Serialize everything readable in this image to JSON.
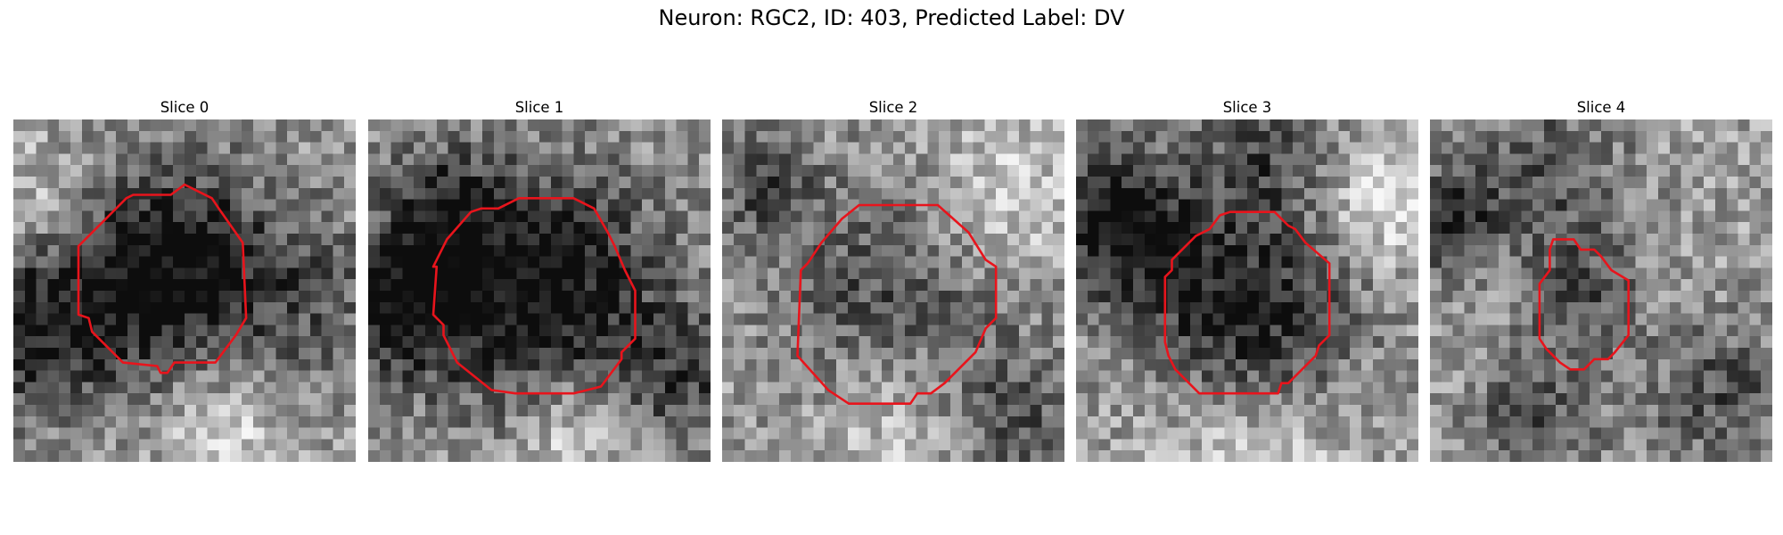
{
  "figure": {
    "title": "Neuron: RGC2, ID: 403, Predicted Label: DV"
  },
  "colors": {
    "contour": "#e8141c"
  },
  "panels": [
    {
      "title": "Slice 0",
      "seed": 11,
      "blobs": [
        [
          0.46,
          0.44,
          0.23,
          0.62
        ],
        [
          0.05,
          0.62,
          0.18,
          0.45
        ],
        [
          0.08,
          0.24,
          0.12,
          -0.2
        ],
        [
          0.62,
          0.9,
          0.14,
          -0.25
        ],
        [
          0.92,
          0.55,
          0.2,
          0.2
        ]
      ],
      "contour": [
        [
          0.5,
          0.19
        ],
        [
          0.58,
          0.23
        ],
        [
          0.6,
          0.26
        ],
        [
          0.67,
          0.36
        ],
        [
          0.68,
          0.58
        ],
        [
          0.65,
          0.63
        ],
        [
          0.59,
          0.71
        ],
        [
          0.56,
          0.71
        ],
        [
          0.47,
          0.71
        ],
        [
          0.45,
          0.74
        ],
        [
          0.43,
          0.74
        ],
        [
          0.42,
          0.72
        ],
        [
          0.32,
          0.71
        ],
        [
          0.27,
          0.66
        ],
        [
          0.23,
          0.62
        ],
        [
          0.22,
          0.58
        ],
        [
          0.19,
          0.57
        ],
        [
          0.19,
          0.37
        ],
        [
          0.27,
          0.29
        ],
        [
          0.33,
          0.23
        ],
        [
          0.35,
          0.22
        ],
        [
          0.46,
          0.22
        ]
      ]
    },
    {
      "title": "Slice 1",
      "seed": 23,
      "blobs": [
        [
          0.5,
          0.5,
          0.26,
          0.62
        ],
        [
          0.07,
          0.55,
          0.14,
          0.5
        ],
        [
          0.2,
          0.25,
          0.12,
          0.35
        ],
        [
          0.6,
          0.9,
          0.12,
          -0.3
        ],
        [
          0.93,
          0.75,
          0.14,
          0.3
        ]
      ],
      "contour": [
        [
          0.44,
          0.23
        ],
        [
          0.6,
          0.23
        ],
        [
          0.66,
          0.26
        ],
        [
          0.7,
          0.33
        ],
        [
          0.72,
          0.37
        ],
        [
          0.75,
          0.44
        ],
        [
          0.78,
          0.5
        ],
        [
          0.78,
          0.64
        ],
        [
          0.74,
          0.68
        ],
        [
          0.74,
          0.7
        ],
        [
          0.68,
          0.78
        ],
        [
          0.6,
          0.8
        ],
        [
          0.57,
          0.8
        ],
        [
          0.5,
          0.8
        ],
        [
          0.47,
          0.8
        ],
        [
          0.43,
          0.8
        ],
        [
          0.36,
          0.79
        ],
        [
          0.26,
          0.71
        ],
        [
          0.22,
          0.63
        ],
        [
          0.22,
          0.6
        ],
        [
          0.19,
          0.57
        ],
        [
          0.2,
          0.43
        ],
        [
          0.19,
          0.43
        ],
        [
          0.23,
          0.35
        ],
        [
          0.3,
          0.27
        ],
        [
          0.33,
          0.26
        ],
        [
          0.38,
          0.26
        ]
      ]
    },
    {
      "title": "Slice 2",
      "seed": 37,
      "blobs": [
        [
          0.5,
          0.55,
          0.25,
          0.35
        ],
        [
          0.12,
          0.2,
          0.12,
          0.3
        ],
        [
          0.8,
          0.25,
          0.15,
          -0.25
        ],
        [
          0.85,
          0.88,
          0.14,
          0.3
        ],
        [
          0.5,
          0.85,
          0.18,
          -0.25
        ]
      ],
      "contour": [
        [
          0.4,
          0.25
        ],
        [
          0.63,
          0.25
        ],
        [
          0.72,
          0.33
        ],
        [
          0.77,
          0.41
        ],
        [
          0.8,
          0.43
        ],
        [
          0.8,
          0.58
        ],
        [
          0.77,
          0.61
        ],
        [
          0.74,
          0.68
        ],
        [
          0.65,
          0.77
        ],
        [
          0.61,
          0.8
        ],
        [
          0.57,
          0.8
        ],
        [
          0.55,
          0.83
        ],
        [
          0.37,
          0.83
        ],
        [
          0.31,
          0.79
        ],
        [
          0.22,
          0.69
        ],
        [
          0.23,
          0.44
        ],
        [
          0.25,
          0.42
        ],
        [
          0.29,
          0.36
        ],
        [
          0.35,
          0.29
        ]
      ]
    },
    {
      "title": "Slice 3",
      "seed": 53,
      "blobs": [
        [
          0.5,
          0.58,
          0.22,
          0.55
        ],
        [
          0.12,
          0.3,
          0.16,
          0.55
        ],
        [
          0.55,
          0.1,
          0.14,
          0.3
        ],
        [
          0.9,
          0.25,
          0.12,
          -0.3
        ],
        [
          0.5,
          0.95,
          0.2,
          -0.25
        ]
      ],
      "contour": [
        [
          0.42,
          0.28
        ],
        [
          0.45,
          0.27
        ],
        [
          0.58,
          0.27
        ],
        [
          0.62,
          0.31
        ],
        [
          0.64,
          0.32
        ],
        [
          0.67,
          0.36
        ],
        [
          0.74,
          0.42
        ],
        [
          0.74,
          0.63
        ],
        [
          0.71,
          0.66
        ],
        [
          0.7,
          0.69
        ],
        [
          0.62,
          0.77
        ],
        [
          0.6,
          0.77
        ],
        [
          0.59,
          0.8
        ],
        [
          0.56,
          0.8
        ],
        [
          0.36,
          0.8
        ],
        [
          0.29,
          0.73
        ],
        [
          0.27,
          0.69
        ],
        [
          0.26,
          0.65
        ],
        [
          0.26,
          0.46
        ],
        [
          0.28,
          0.44
        ],
        [
          0.28,
          0.41
        ],
        [
          0.35,
          0.34
        ],
        [
          0.39,
          0.32
        ]
      ]
    },
    {
      "title": "Slice 4",
      "seed": 71,
      "blobs": [
        [
          0.45,
          0.5,
          0.12,
          0.3
        ],
        [
          0.05,
          0.3,
          0.1,
          0.5
        ],
        [
          0.3,
          0.85,
          0.14,
          0.3
        ],
        [
          0.85,
          0.8,
          0.16,
          0.3
        ],
        [
          0.35,
          0.15,
          0.16,
          0.3
        ]
      ],
      "contour": [
        [
          0.36,
          0.35
        ],
        [
          0.42,
          0.35
        ],
        [
          0.44,
          0.38
        ],
        [
          0.48,
          0.38
        ],
        [
          0.5,
          0.4
        ],
        [
          0.53,
          0.44
        ],
        [
          0.58,
          0.47
        ],
        [
          0.58,
          0.63
        ],
        [
          0.54,
          0.68
        ],
        [
          0.52,
          0.7
        ],
        [
          0.48,
          0.7
        ],
        [
          0.45,
          0.73
        ],
        [
          0.41,
          0.73
        ],
        [
          0.38,
          0.71
        ],
        [
          0.34,
          0.67
        ],
        [
          0.32,
          0.64
        ],
        [
          0.32,
          0.48
        ],
        [
          0.35,
          0.44
        ],
        [
          0.35,
          0.38
        ]
      ]
    }
  ]
}
